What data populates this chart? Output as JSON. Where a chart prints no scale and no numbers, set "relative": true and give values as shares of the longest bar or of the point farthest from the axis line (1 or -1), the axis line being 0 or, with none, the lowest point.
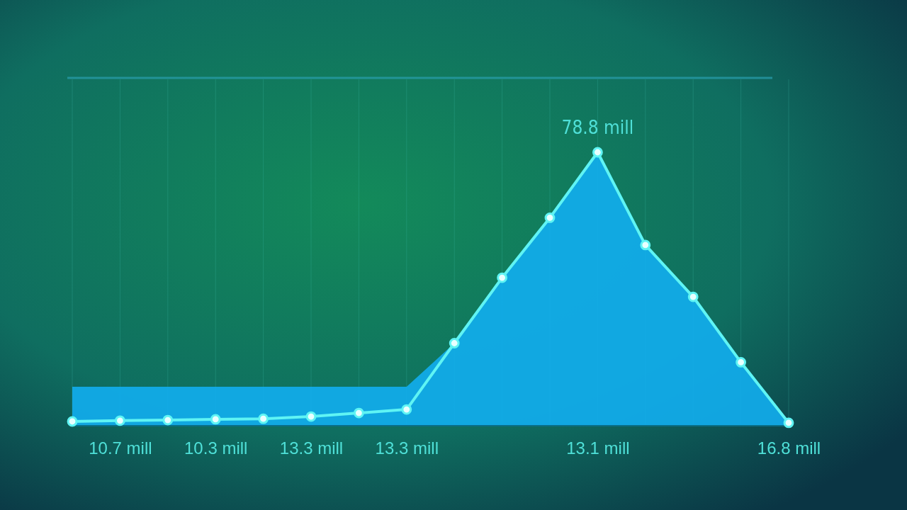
{
  "chart_data": {
    "type": "line",
    "relative": true,
    "grid": "x",
    "marker": "circle",
    "line_style": "solid",
    "categories": [
      null,
      "10.7 mill",
      null,
      "10.3 mill",
      null,
      "13.3 mill",
      null,
      "13.3 mill",
      null,
      null,
      null,
      "13.1 mill",
      null,
      null,
      null,
      "16.8 mill"
    ],
    "series": [
      {
        "type": "area",
        "marker": "none",
        "color": "#12aef0",
        "values": [
          0.14,
          0.14,
          0.14,
          0.14,
          0.14,
          0.14,
          0.14,
          0.14,
          0.3,
          0.54,
          0.76,
          1,
          0.66,
          0.47,
          0.23,
          0.008
        ]
      },
      {
        "color": "#5ff4f4",
        "values": [
          0.013,
          0.016,
          0.018,
          0.021,
          0.023,
          0.031,
          0.044,
          0.057,
          0.3,
          0.54,
          0.76,
          1,
          0.66,
          0.47,
          0.23,
          0.008
        ]
      }
    ],
    "annotations": [
      {
        "text": "78.8 mill",
        "x": "13.1 mill",
        "y": 1
      }
    ]
  }
}
